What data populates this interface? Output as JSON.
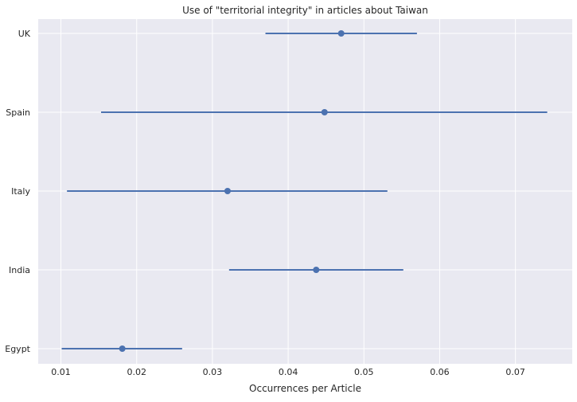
{
  "chart_data": {
    "type": "scatter",
    "title": "Use of \"territorial integrity\" in articles about Taiwan",
    "xlabel": "Occurrences per Article",
    "ylabel": "",
    "xlim": [
      0.007,
      0.0775
    ],
    "x_ticks": [
      "0.01",
      "0.02",
      "0.03",
      "0.04",
      "0.05",
      "0.06",
      "0.07"
    ],
    "categories": [
      "UK",
      "Spain",
      "Italy",
      "India",
      "Egypt"
    ],
    "points": [
      {
        "label": "UK",
        "value": 0.047,
        "low": 0.037,
        "high": 0.057
      },
      {
        "label": "Spain",
        "value": 0.0448,
        "low": 0.0153,
        "high": 0.0742
      },
      {
        "label": "Italy",
        "value": 0.032,
        "low": 0.0108,
        "high": 0.0531
      },
      {
        "label": "India",
        "value": 0.0437,
        "low": 0.0322,
        "high": 0.0552
      },
      {
        "label": "Egypt",
        "value": 0.0181,
        "low": 0.0101,
        "high": 0.026
      }
    ],
    "grid": true,
    "style": {
      "background": "#e9e9f1",
      "grid_color": "#ffffff",
      "series_color": "#4c72b0"
    }
  }
}
